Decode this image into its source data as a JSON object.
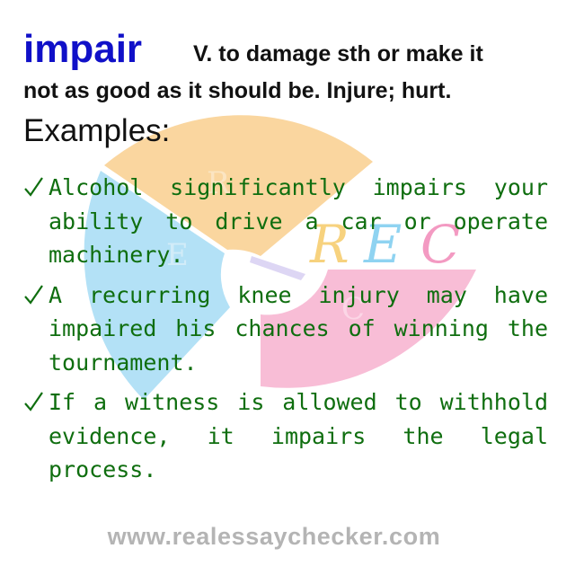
{
  "entry": {
    "word": "impair",
    "definition_line1": "V. to damage sth or make it",
    "definition_line2": "not as good as it should be. Injure; hurt."
  },
  "examples_heading": "Examples:",
  "examples": [
    "Alcohol significantly impairs your ability to drive a car or operate machinery.",
    "A recurring knee injury may have impaired his chances of winning the tournament.",
    "If a witness is allowed to withhold evidence, it impairs the legal process."
  ],
  "watermark": {
    "logo_text": "REC",
    "letters": [
      "R",
      "E",
      "C"
    ],
    "colors": {
      "orange": "#f9cf8e",
      "blue": "#a6dcf4",
      "pink": "#f7b1cf"
    }
  },
  "footer": {
    "url": "www.realessaychecker.com"
  },
  "colors": {
    "headword": "#1010c8",
    "example_text": "#0f6e0f",
    "footer_text": "#b4b4b4"
  }
}
